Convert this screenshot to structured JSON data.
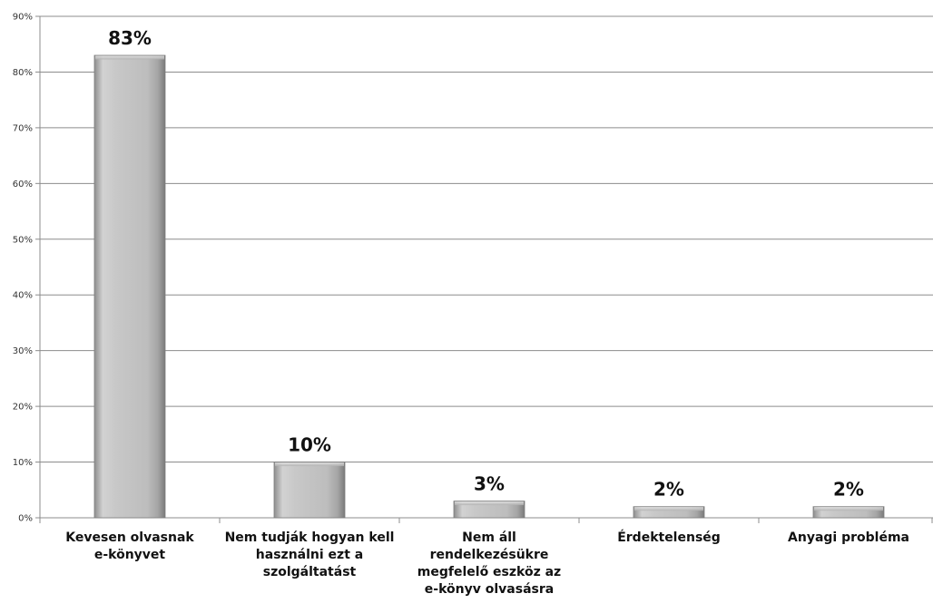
{
  "chart_data": {
    "type": "bar",
    "categories": [
      "Kevesen olvasnak\ne-könyvet",
      "Nem tudják hogyan kell\nhasználni ezt a\nszolgáltatást",
      "Nem áll\nrendelkezésükre\nmegfelelő eszköz az\ne-könyv olvasásra",
      "Érdektelenség",
      "Anyagi probléma"
    ],
    "values": [
      83,
      10,
      3,
      2,
      2
    ],
    "data_labels": [
      "83%",
      "10%",
      "3%",
      "2%",
      "2%"
    ],
    "title": "",
    "xlabel": "",
    "ylabel": "",
    "ylim": [
      0,
      90
    ],
    "yticks": [
      "0%",
      "10%",
      "20%",
      "30%",
      "40%",
      "50%",
      "60%",
      "70%",
      "80%",
      "90%"
    ],
    "grid": true,
    "bar_color": "#c8c8c8",
    "grid_color": "#8c8c8c"
  }
}
